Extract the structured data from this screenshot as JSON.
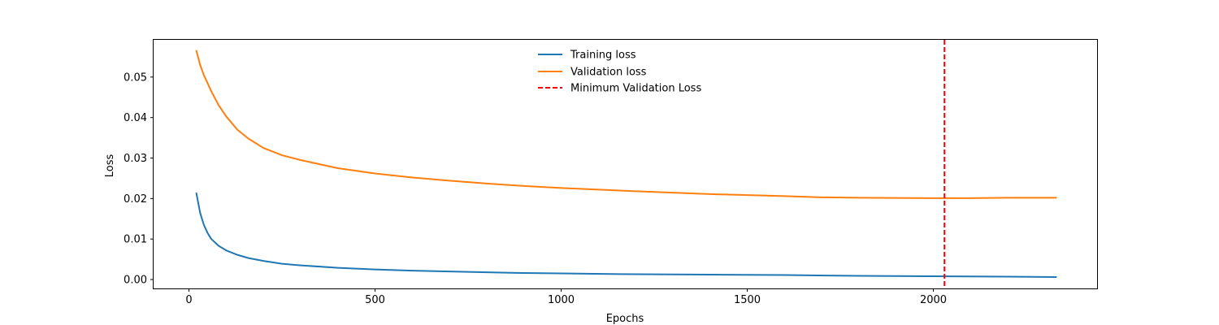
{
  "chart_data": {
    "type": "line",
    "title": "",
    "xlabel": "Epochs",
    "ylabel": "Loss",
    "xlim": [
      -95,
      2440
    ],
    "ylim": [
      -0.0022,
      0.0592
    ],
    "x_ticks": [
      0,
      500,
      1000,
      1500,
      2000
    ],
    "x_tick_labels": [
      "0",
      "500",
      "1000",
      "1500",
      "2000"
    ],
    "y_ticks": [
      0.0,
      0.01,
      0.02,
      0.03,
      0.04,
      0.05
    ],
    "y_tick_labels": [
      "0.00",
      "0.01",
      "0.02",
      "0.03",
      "0.04",
      "0.05"
    ],
    "grid": false,
    "legend_position": "top-center",
    "series": [
      {
        "name": "Training loss",
        "color": "#1f77b4",
        "x": [
          20,
          30,
          40,
          50,
          60,
          80,
          100,
          130,
          160,
          200,
          250,
          300,
          400,
          500,
          600,
          700,
          800,
          900,
          1000,
          1200,
          1400,
          1600,
          1800,
          2000,
          2200,
          2330
        ],
        "values": [
          0.0213,
          0.0165,
          0.0135,
          0.0115,
          0.01,
          0.0083,
          0.0072,
          0.0061,
          0.0053,
          0.0046,
          0.0039,
          0.0035,
          0.0029,
          0.0025,
          0.0022,
          0.002,
          0.0018,
          0.0016,
          0.0015,
          0.0013,
          0.0012,
          0.0011,
          0.0009,
          0.0008,
          0.0007,
          0.0006
        ]
      },
      {
        "name": "Validation loss",
        "color": "#ff7f0e",
        "x": [
          20,
          30,
          40,
          50,
          60,
          80,
          100,
          130,
          160,
          200,
          250,
          300,
          400,
          500,
          600,
          700,
          800,
          900,
          1000,
          1200,
          1400,
          1600,
          1700,
          1800,
          2000,
          2100,
          2200,
          2330
        ],
        "values": [
          0.0565,
          0.053,
          0.0505,
          0.0485,
          0.0465,
          0.043,
          0.0403,
          0.037,
          0.0348,
          0.0325,
          0.0307,
          0.0295,
          0.0275,
          0.0262,
          0.0252,
          0.0244,
          0.0237,
          0.0231,
          0.0226,
          0.0218,
          0.0211,
          0.0206,
          0.0203,
          0.0202,
          0.0201,
          0.0201,
          0.0202,
          0.0202
        ]
      }
    ],
    "vline": {
      "name": "Minimum Validation Loss",
      "x": 2030,
      "color": "#ff0000",
      "style": "dashed"
    }
  }
}
